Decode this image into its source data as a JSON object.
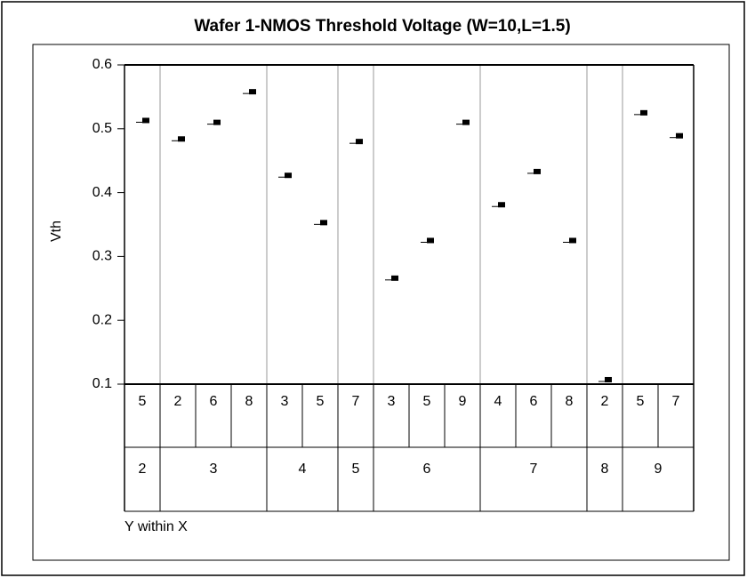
{
  "chart_data": {
    "type": "variability",
    "title": "Wafer 1-NMOS Threshold Voltage (W=10,L=1.5)",
    "ylabel": "Vth",
    "xlabel": "Y within X",
    "groups": [
      {
        "x": "2",
        "y": [
          "5"
        ]
      },
      {
        "x": "3",
        "y": [
          "2",
          "6",
          "8"
        ]
      },
      {
        "x": "4",
        "y": [
          "3",
          "5"
        ]
      },
      {
        "x": "5",
        "y": [
          "7"
        ]
      },
      {
        "x": "6",
        "y": [
          "3",
          "5",
          "9"
        ]
      },
      {
        "x": "7",
        "y": [
          "4",
          "6",
          "8"
        ]
      },
      {
        "x": "8",
        "y": [
          "2"
        ]
      },
      {
        "x": "9",
        "y": [
          "5",
          "7"
        ]
      }
    ],
    "values": [
      0.513,
      0.484,
      0.51,
      0.558,
      0.427,
      0.353,
      0.48,
      0.266,
      0.325,
      0.51,
      0.381,
      0.433,
      0.325,
      0.107,
      0.525,
      0.489
    ],
    "color": "#000000",
    "ylim": [
      0.1,
      0.6
    ],
    "yticks": [
      0.1,
      0.2,
      0.3,
      0.4,
      0.5,
      0.6
    ]
  }
}
